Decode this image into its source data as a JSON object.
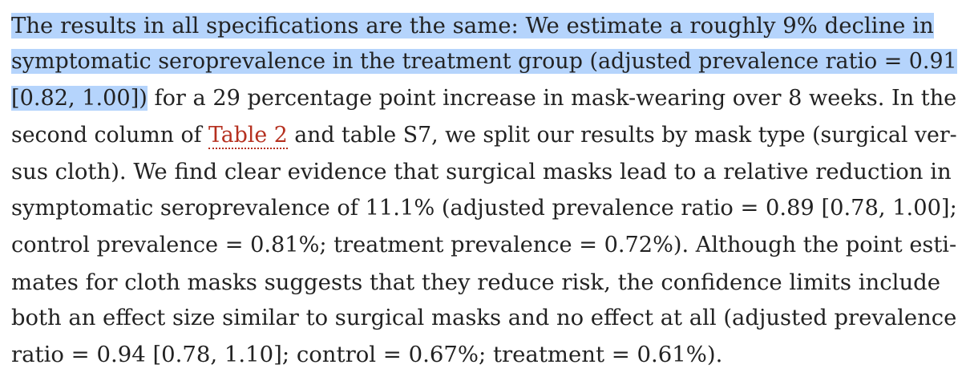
{
  "paragraph": {
    "l1_hl": "The results in all specifications are the same: We estimate a roughly 9% decline in",
    "l2_hl": "symptomatic seroprevalence in the treatment group (adjusted prevalence ratio = 0.91",
    "l3_hl": "[0.82, 1.00])",
    "l3_rest": " for a 29 percentage point increase in mask-wearing over 8 weeks. In the",
    "l4_pre": "second column of ",
    "l4_link": "Table 2",
    "l4_post": " and table S7, we split our results by mask type (surgical ver-",
    "l5": "sus cloth). We find clear evidence that surgical masks lead to a relative reduction in",
    "l6": "symptomatic seroprevalence of 11.1% (adjusted prevalence ratio = 0.89 [0.78, 1.00];",
    "l7": "control prevalence = 0.81%; treatment prevalence = 0.72%). Although the point esti-",
    "l8": "mates for cloth masks suggests that they reduce risk, the confidence limits include",
    "l9": "both an effect size similar to surgical masks and no effect at all (adjusted prevalence",
    "l10": "ratio = 0.94 [0.78, 1.10]; control = 0.67%; treatment = 0.61%)."
  },
  "colors": {
    "text": "#222222",
    "highlight": "#b5d4fc",
    "link": "#b5301f"
  }
}
